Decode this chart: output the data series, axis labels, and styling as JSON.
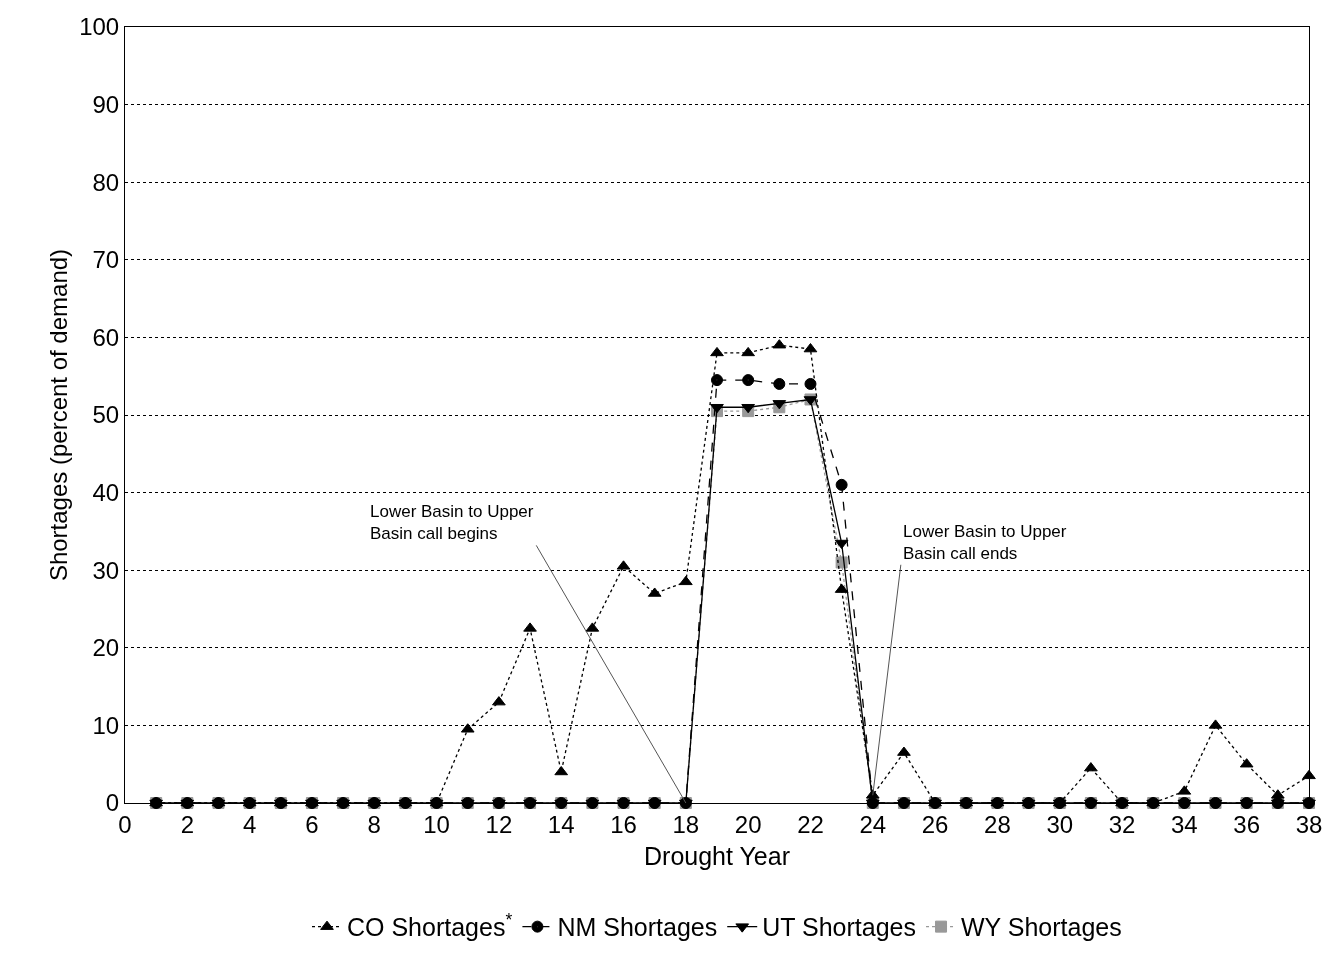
{
  "chart_data": {
    "type": "line",
    "xlabel": "Drought Year",
    "ylabel": "Shortages (percent of demand)",
    "x": [
      1,
      2,
      3,
      4,
      5,
      6,
      7,
      8,
      9,
      10,
      11,
      12,
      13,
      14,
      15,
      16,
      17,
      18,
      19,
      20,
      21,
      22,
      23,
      24,
      25,
      26,
      27,
      28,
      29,
      30,
      31,
      32,
      33,
      34,
      35,
      36,
      37,
      38
    ],
    "series": [
      {
        "name": "CO Shortages$^{*}$",
        "color": "#000000",
        "marker": "triangle",
        "line_style": "dotted",
        "values": [
          0,
          0,
          0,
          0,
          0,
          0,
          0,
          0,
          0,
          0,
          9.5,
          13,
          22.5,
          4,
          22.5,
          30.5,
          27,
          28.5,
          58,
          58,
          59,
          58.5,
          27.5,
          1,
          6.5,
          0,
          0,
          0,
          0,
          0,
          4.5,
          0,
          0,
          1.5,
          10,
          5,
          1,
          3.5
        ]
      },
      {
        "name": "NM Shortages",
        "color": "#000000",
        "marker": "circle",
        "line_style": "dashed",
        "values": [
          0,
          0,
          0,
          0,
          0,
          0,
          0,
          0,
          0,
          0,
          0,
          0,
          0,
          0,
          0,
          0,
          0,
          0,
          54.5,
          54.5,
          54,
          54,
          41,
          0,
          0,
          0,
          0,
          0,
          0,
          0,
          0,
          0,
          0,
          0,
          0,
          0,
          0,
          0
        ]
      },
      {
        "name": "UT Shortages",
        "color": "#000000",
        "marker": "triangle-down",
        "line_style": "solid",
        "values": [
          0,
          0,
          0,
          0,
          0,
          0,
          0,
          0,
          0,
          0,
          0,
          0,
          0,
          0,
          0,
          0,
          0,
          0,
          51,
          51,
          51.5,
          52,
          33.5,
          0,
          0,
          0,
          0,
          0,
          0,
          0,
          0,
          0,
          0,
          0,
          0,
          0,
          0,
          0
        ]
      },
      {
        "name": "WY Shortages",
        "color": "#999999",
        "marker": "square",
        "line_style": "dotted",
        "values": [
          0,
          0,
          0,
          0,
          0,
          0,
          0,
          0,
          0,
          0,
          0,
          0,
          0,
          0,
          0,
          0,
          0,
          0,
          50.5,
          50.5,
          51,
          52,
          31,
          0,
          0,
          0,
          0,
          0,
          0,
          0,
          0,
          0,
          0,
          0,
          0,
          0,
          0,
          0
        ]
      }
    ],
    "xlim": [
      0,
      38
    ],
    "xticks": [
      0,
      2,
      4,
      6,
      8,
      10,
      12,
      14,
      16,
      18,
      20,
      22,
      24,
      26,
      28,
      30,
      32,
      34,
      36,
      38
    ],
    "ylim": [
      0,
      100
    ],
    "yticks": [
      0,
      10,
      20,
      30,
      40,
      50,
      60,
      70,
      80,
      90,
      100
    ],
    "grid": "y",
    "legend": "bottom",
    "annotations": [
      {
        "text": "Lower Basin to Upper\nBasin call begins",
        "x": 18,
        "y": 0
      },
      {
        "text": "Lower Basin to Upper\nBasin call ends",
        "x": 24,
        "y": 1
      }
    ]
  }
}
